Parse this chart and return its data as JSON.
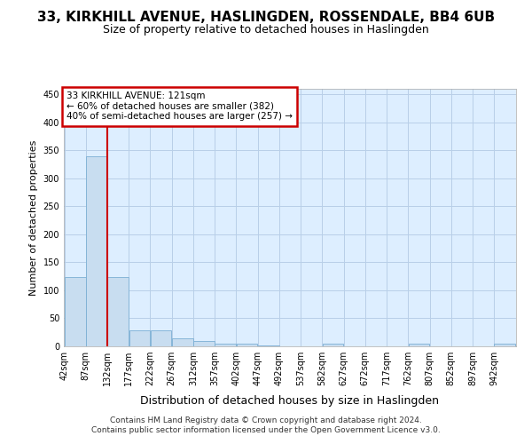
{
  "title": "33, KIRKHILL AVENUE, HASLINGDEN, ROSSENDALE, BB4 6UB",
  "subtitle": "Size of property relative to detached houses in Haslingden",
  "xlabel": "Distribution of detached houses by size in Haslingden",
  "ylabel": "Number of detached properties",
  "footer_line1": "Contains HM Land Registry data © Crown copyright and database right 2024.",
  "footer_line2": "Contains public sector information licensed under the Open Government Licence v3.0.",
  "bins": [
    42,
    87,
    132,
    177,
    222,
    267,
    312,
    357,
    402,
    447,
    492,
    537,
    582,
    627,
    672,
    717,
    762,
    807,
    852,
    897,
    942
  ],
  "bar_heights": [
    123,
    340,
    123,
    29,
    29,
    15,
    9,
    5,
    4,
    1,
    0,
    0,
    4,
    0,
    0,
    0,
    4,
    0,
    0,
    0,
    4
  ],
  "bar_color": "#c8ddf0",
  "bar_edge_color": "#7bafd4",
  "plot_bg_color": "#ddeeff",
  "property_line_x": 132,
  "annotation_title": "33 KIRKHILL AVENUE: 121sqm",
  "annotation_line1": "← 60% of detached houses are smaller (382)",
  "annotation_line2": "40% of semi-detached houses are larger (257) →",
  "annotation_box_color": "#ffffff",
  "annotation_box_edge_color": "#cc0000",
  "line_color": "#cc0000",
  "ylim": [
    0,
    460
  ],
  "yticks": [
    0,
    50,
    100,
    150,
    200,
    250,
    300,
    350,
    400,
    450
  ],
  "background_color": "#ffffff",
  "grid_color": "#b8cfe8",
  "title_fontsize": 11,
  "subtitle_fontsize": 9
}
